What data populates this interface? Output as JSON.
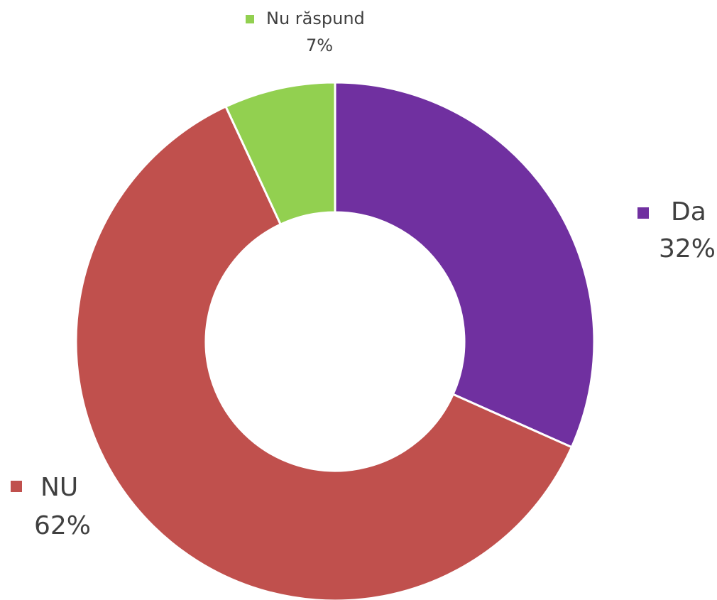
{
  "chart_data": {
    "type": "donut",
    "categories": [
      "Da",
      "NU",
      "Nu răspund"
    ],
    "values": [
      32,
      62,
      7
    ],
    "value_labels": [
      "32%",
      "62%",
      "7%"
    ],
    "colors": [
      "#7030a0",
      "#c0504d",
      "#92d050"
    ]
  }
}
